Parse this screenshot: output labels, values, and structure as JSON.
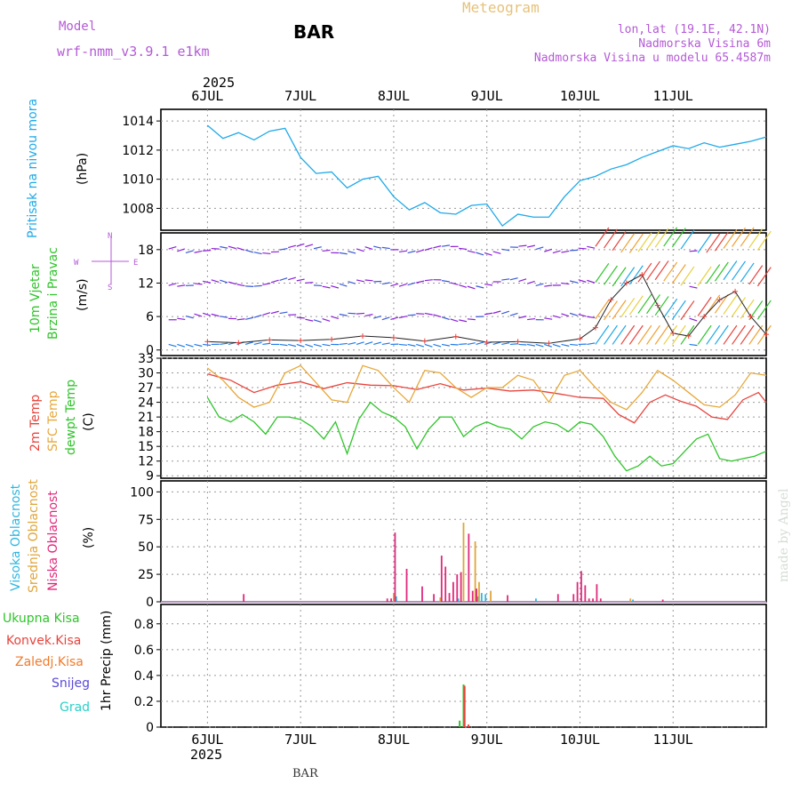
{
  "header": {
    "model_label": "Model",
    "model_name": "wrf-nmm_v3.9.1 e1km",
    "station": "BAR",
    "title": "Meteogram",
    "lonlat": "lon,lat (19.1E, 42.1N)",
    "elevation": "Nadmorska Visina 6m",
    "model_elevation": "Nadmorska Visina u modelu 65.4587m",
    "footer_station": "BAR",
    "credit": "made by Angel"
  },
  "time_axis": {
    "year": "2025",
    "days": [
      "6JUL",
      "7JUL",
      "8JUL",
      "9JUL",
      "10JUL",
      "11JUL"
    ]
  },
  "colors": {
    "pressure": "#1fa9e8",
    "temp2m": "#e8433c",
    "sfc": "#e6a83a",
    "dewpt": "#2fc42a",
    "high_cloud": "#2fb6e0",
    "mid_cloud": "#e0a53a",
    "low_cloud": "#e0287a",
    "total_rain": "#2fc42a",
    "conv_rain": "#e8433c",
    "frozen": "#f07a2a",
    "snow": "#5a4ad6",
    "hail": "#2ad0c8",
    "wind_main": "#8a1fd6",
    "wind_gust": "#e8433c"
  },
  "panels": {
    "pressure": {
      "ylabel": "Pritisak na nivou mora",
      "unit": "(hPa)",
      "ticks": [
        "1008",
        "1010",
        "1012",
        "1014"
      ]
    },
    "wind": {
      "ylabel1": "10m Vjetar",
      "ylabel2": "Brzina i Pravac",
      "unit": "(m/s)",
      "ticks": [
        "0",
        "6",
        "12",
        "18"
      ],
      "compass_n": "N",
      "compass_w": "W",
      "compass_e": "E",
      "compass_s": "S"
    },
    "temp": {
      "label1": "2m Temp",
      "label2": "SFC Temp",
      "label3": "dewpt Temp",
      "unit": "(C)",
      "ticks": [
        "9",
        "12",
        "15",
        "18",
        "21",
        "24",
        "27",
        "30",
        "33"
      ]
    },
    "cloud": {
      "label1": "Visoka Oblacnost",
      "label2": "Srednja Oblacnost",
      "label3": "Niska Oblacnost",
      "unit": "(%)",
      "ticks": [
        "0",
        "25",
        "50",
        "75",
        "100"
      ]
    },
    "precip": {
      "legend": [
        "Ukupna Kisa",
        "Konvek.Kisa",
        "Zaledj.Kisa",
        "Snijeg",
        "Grad"
      ],
      "ylabel": "1hr Precip (mm)",
      "ticks": [
        "0",
        "0.2",
        "0.4",
        "0.6",
        "0.8"
      ]
    }
  },
  "chart_data": [
    {
      "type": "line",
      "panel": "pressure",
      "ylim": [
        1006.5,
        1014.8
      ],
      "series": [
        {
          "name": "",
          "x": [
            0,
            4,
            8,
            12,
            16,
            20,
            24,
            28,
            32,
            36,
            40,
            44,
            48,
            52,
            56,
            60,
            64,
            68,
            72,
            76,
            80,
            84,
            88,
            92,
            96,
            100,
            104,
            108,
            112,
            116,
            120,
            124,
            128,
            132,
            136,
            140,
            144
          ],
          "values": [
            1013.7,
            1012.8,
            1013.2,
            1012.7,
            1013.3,
            1013.5,
            1011.5,
            1010.4,
            1010.5,
            1009.4,
            1010.0,
            1010.2,
            1008.8,
            1007.9,
            1008.4,
            1007.7,
            1007.6,
            1008.2,
            1008.3,
            1006.8,
            1007.6,
            1007.4,
            1007.4,
            1008.8,
            1009.9,
            1010.2,
            1010.7,
            1011.0,
            1011.5,
            1011.9,
            1012.3,
            1012.1,
            1012.5,
            1012.2,
            1012.4,
            1012.6,
            1012.9
          ]
        }
      ]
    },
    {
      "type": "line",
      "panel": "wind",
      "ylim": [
        -1,
        21
      ],
      "series": [
        {
          "name": "",
          "x": [
            0,
            8,
            16,
            24,
            32,
            40,
            48,
            56,
            64,
            72,
            80,
            88,
            96,
            100,
            104,
            108,
            112,
            116,
            120,
            124,
            128,
            132,
            136,
            140,
            144
          ],
          "values": [
            1.5,
            1.3,
            1.8,
            1.7,
            1.9,
            2.5,
            2.2,
            1.6,
            2.4,
            1.4,
            1.5,
            1.2,
            2.0,
            4.0,
            9.0,
            12.0,
            13.5,
            8.0,
            3.0,
            2.5,
            6.0,
            9.0,
            10.5,
            6.0,
            2.8
          ]
        }
      ]
    },
    {
      "type": "line",
      "panel": "temp",
      "ylim": [
        8.5,
        33
      ],
      "series": [
        {
          "name": "2m Temp",
          "x": [
            0,
            6,
            12,
            18,
            24,
            30,
            36,
            42,
            48,
            54,
            60,
            66,
            72,
            78,
            84,
            90,
            96,
            102,
            106,
            110,
            114,
            118,
            122,
            126,
            130,
            134,
            138,
            142,
            144
          ],
          "values": [
            29.8,
            28.5,
            26.0,
            27.5,
            28.2,
            26.8,
            28.0,
            27.5,
            27.4,
            26.6,
            27.8,
            26.5,
            26.9,
            26.3,
            26.5,
            25.8,
            25.0,
            24.8,
            21.5,
            19.8,
            24.0,
            25.5,
            24.2,
            23.2,
            21.0,
            20.5,
            24.5,
            26.0,
            24.0
          ]
        },
        {
          "name": "SFC Temp",
          "x": [
            0,
            4,
            8,
            12,
            16,
            20,
            24,
            28,
            32,
            36,
            40,
            44,
            48,
            52,
            56,
            60,
            64,
            68,
            72,
            76,
            80,
            84,
            88,
            92,
            96,
            100,
            104,
            108,
            112,
            116,
            120,
            124,
            128,
            132,
            136,
            140,
            144
          ],
          "values": [
            31.0,
            28.5,
            25.0,
            23.0,
            24.0,
            30.0,
            31.5,
            28.0,
            24.5,
            24.0,
            31.5,
            30.5,
            27.0,
            24.0,
            30.5,
            30.0,
            27.0,
            25.0,
            27.0,
            27.0,
            29.5,
            28.5,
            24.0,
            29.5,
            30.5,
            27.0,
            24.0,
            22.5,
            26.0,
            30.5,
            28.5,
            26.0,
            23.5,
            23.0,
            25.5,
            30.0,
            29.5
          ]
        },
        {
          "name": "dewpt Temp",
          "x": [
            0,
            3,
            6,
            9,
            12,
            15,
            18,
            21,
            24,
            27,
            30,
            33,
            36,
            39,
            42,
            45,
            48,
            51,
            54,
            57,
            60,
            63,
            66,
            69,
            72,
            75,
            78,
            81,
            84,
            87,
            90,
            93,
            96,
            99,
            102,
            105,
            108,
            111,
            114,
            117,
            120,
            123,
            126,
            129,
            132,
            135,
            138,
            141,
            144
          ],
          "values": [
            25.0,
            21.0,
            20.0,
            21.5,
            20.0,
            17.5,
            21.0,
            21.0,
            20.5,
            19.0,
            16.5,
            20.0,
            13.5,
            20.5,
            24.0,
            22.0,
            21.0,
            19.0,
            14.5,
            18.5,
            21.0,
            21.0,
            17.0,
            19.0,
            20.0,
            19.0,
            18.5,
            16.5,
            19.0,
            20.0,
            19.5,
            18.0,
            20.0,
            19.5,
            17.0,
            13.0,
            10.0,
            11.0,
            13.0,
            11.0,
            11.5,
            14.0,
            16.5,
            17.5,
            12.5,
            12.0,
            12.5,
            13.0,
            14.0
          ]
        }
      ]
    },
    {
      "type": "bar",
      "panel": "cloud",
      "ylim": [
        0,
        110
      ],
      "series": [
        {
          "name": "Visoka Oblacnost",
          "x": [
            49,
            65,
            70,
            71,
            72,
            85,
            110
          ],
          "values": [
            5,
            3,
            5,
            8,
            7,
            3,
            2
          ]
        },
        {
          "name": "Srednja Oblacnost",
          "x": [
            48,
            60,
            66,
            69,
            70,
            73,
            109
          ],
          "values": [
            8,
            4,
            72,
            55,
            18,
            10,
            3
          ]
        },
        {
          "name": "Niska Oblacnost",
          "x": [
            9,
            46,
            47,
            48,
            51,
            55,
            58,
            60,
            61,
            62,
            63,
            64,
            65,
            67,
            68,
            69,
            77,
            90,
            94,
            95,
            96,
            97,
            98,
            99,
            100,
            101,
            117
          ],
          "values": [
            7,
            3,
            3,
            63,
            30,
            14,
            7,
            42,
            32,
            8,
            18,
            25,
            27,
            62,
            10,
            12,
            6,
            7,
            7,
            18,
            28,
            15,
            3,
            3,
            16,
            3,
            2
          ]
        }
      ]
    },
    {
      "type": "bar",
      "panel": "precip",
      "ylim": [
        0,
        0.95
      ],
      "series": [
        {
          "name": "Ukupna Kisa",
          "x": [
            65,
            66
          ],
          "values": [
            0.05,
            0.33
          ]
        },
        {
          "name": "Konvek.Kisa",
          "x": [
            66,
            67
          ],
          "values": [
            0.32,
            0.02
          ]
        },
        {
          "name": "Zaledj.Kisa",
          "x": [],
          "values": []
        },
        {
          "name": "Snijeg",
          "x": [],
          "values": []
        },
        {
          "name": "Grad",
          "x": [],
          "values": []
        }
      ]
    }
  ]
}
